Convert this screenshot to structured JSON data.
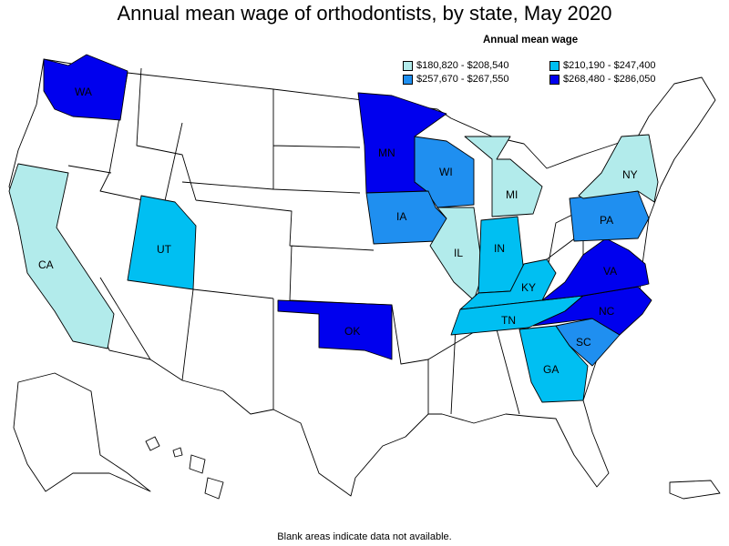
{
  "title": "Annual mean wage of orthodontists, by state, May 2020",
  "legend": {
    "title": "Annual mean wage",
    "items": [
      {
        "label": "$180,820 - $208,540",
        "color": "#b2ebeb"
      },
      {
        "label": "$210,190 - $247,400",
        "color": "#00bff2"
      },
      {
        "label": "$257,670 - $267,550",
        "color": "#1f8ff0"
      },
      {
        "label": "$268,480 - $286,050",
        "color": "#0000ee"
      }
    ]
  },
  "footnote": "Blank areas indicate data not available.",
  "chart_data": {
    "type": "choropleth",
    "title": "Annual mean wage of orthodontists, by state, May 2020",
    "legend_title": "Annual mean wage",
    "bins": [
      {
        "range": "$180,820 - $208,540",
        "color": "#b2ebeb"
      },
      {
        "range": "$210,190 - $247,400",
        "color": "#00bff2"
      },
      {
        "range": "$257,670 - $267,550",
        "color": "#1f8ff0"
      },
      {
        "range": "$268,480 - $286,050",
        "color": "#0000ee"
      }
    ],
    "states": [
      {
        "abbr": "WA",
        "bin": 3
      },
      {
        "abbr": "CA",
        "bin": 0
      },
      {
        "abbr": "UT",
        "bin": 1
      },
      {
        "abbr": "MN",
        "bin": 3
      },
      {
        "abbr": "WI",
        "bin": 2
      },
      {
        "abbr": "IA",
        "bin": 2
      },
      {
        "abbr": "IL",
        "bin": 0
      },
      {
        "abbr": "MI",
        "bin": 0
      },
      {
        "abbr": "IN",
        "bin": 1
      },
      {
        "abbr": "OK",
        "bin": 3
      },
      {
        "abbr": "KY",
        "bin": 1
      },
      {
        "abbr": "TN",
        "bin": 1
      },
      {
        "abbr": "GA",
        "bin": 1
      },
      {
        "abbr": "SC",
        "bin": 2
      },
      {
        "abbr": "NC",
        "bin": 3
      },
      {
        "abbr": "VA",
        "bin": 3
      },
      {
        "abbr": "PA",
        "bin": 2
      },
      {
        "abbr": "NY",
        "bin": 0
      }
    ]
  }
}
